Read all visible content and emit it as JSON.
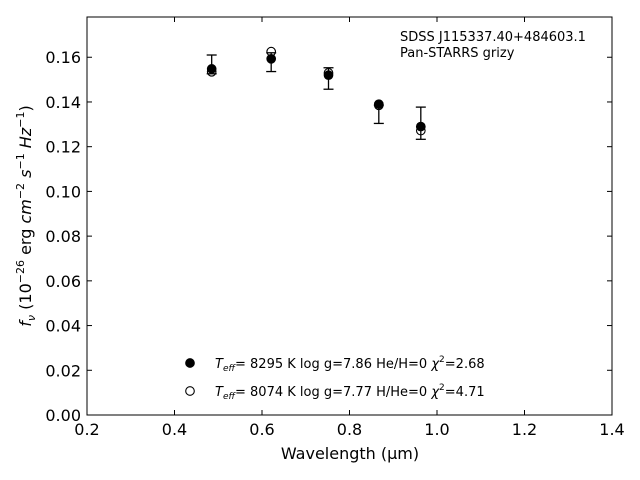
{
  "chart_data": {
    "type": "scatter",
    "xlabel": "Wavelength (μm)",
    "ylabel": "fν (10⁻²⁶ erg cm⁻² s⁻¹ Hz⁻¹)",
    "xlim": [
      0.2,
      1.4
    ],
    "ylim": [
      0.0,
      0.178
    ],
    "xticks": [
      "0.2",
      "0.4",
      "0.6",
      "0.8",
      "1.0",
      "1.2",
      "1.4"
    ],
    "yticks": [
      "0.00",
      "0.02",
      "0.04",
      "0.06",
      "0.08",
      "0.10",
      "0.12",
      "0.14",
      "0.16"
    ],
    "annotation": [
      "SDSS J115337.40+484603.1",
      "Pan-STARRS grizy"
    ],
    "observed": {
      "x": [
        0.485,
        0.621,
        0.752,
        0.867,
        0.963
      ],
      "y": [
        0.1568,
        0.1578,
        0.1505,
        0.1345,
        0.1305
      ],
      "err": [
        0.0042,
        0.0042,
        0.0048,
        0.0041,
        0.0072
      ]
    },
    "series": [
      {
        "name": "Teff= 8295 K log g=7.86 He/H=0 χ²=2.68",
        "marker": "filled",
        "x": [
          0.485,
          0.621,
          0.752,
          0.867,
          0.963
        ],
        "y": [
          0.1548,
          0.1593,
          0.152,
          0.139,
          0.129
        ]
      },
      {
        "name": "Teff= 8074 K log g=7.77 H/He=0 χ²=4.71",
        "marker": "open",
        "x": [
          0.485,
          0.621,
          0.752,
          0.867,
          0.963
        ],
        "y": [
          0.1535,
          0.1625,
          0.153,
          0.1385,
          0.1272
        ]
      }
    ],
    "legend": {
      "entries": [
        {
          "teff": "8295 K",
          "logg": "log g=7.86",
          "comp": "He/H=0",
          "chi": "=2.68",
          "marker": "filled"
        },
        {
          "teff": "8074 K",
          "logg": "log g=7.77",
          "comp": "H/He=0",
          "chi": "=4.71",
          "marker": "open"
        }
      ]
    }
  }
}
